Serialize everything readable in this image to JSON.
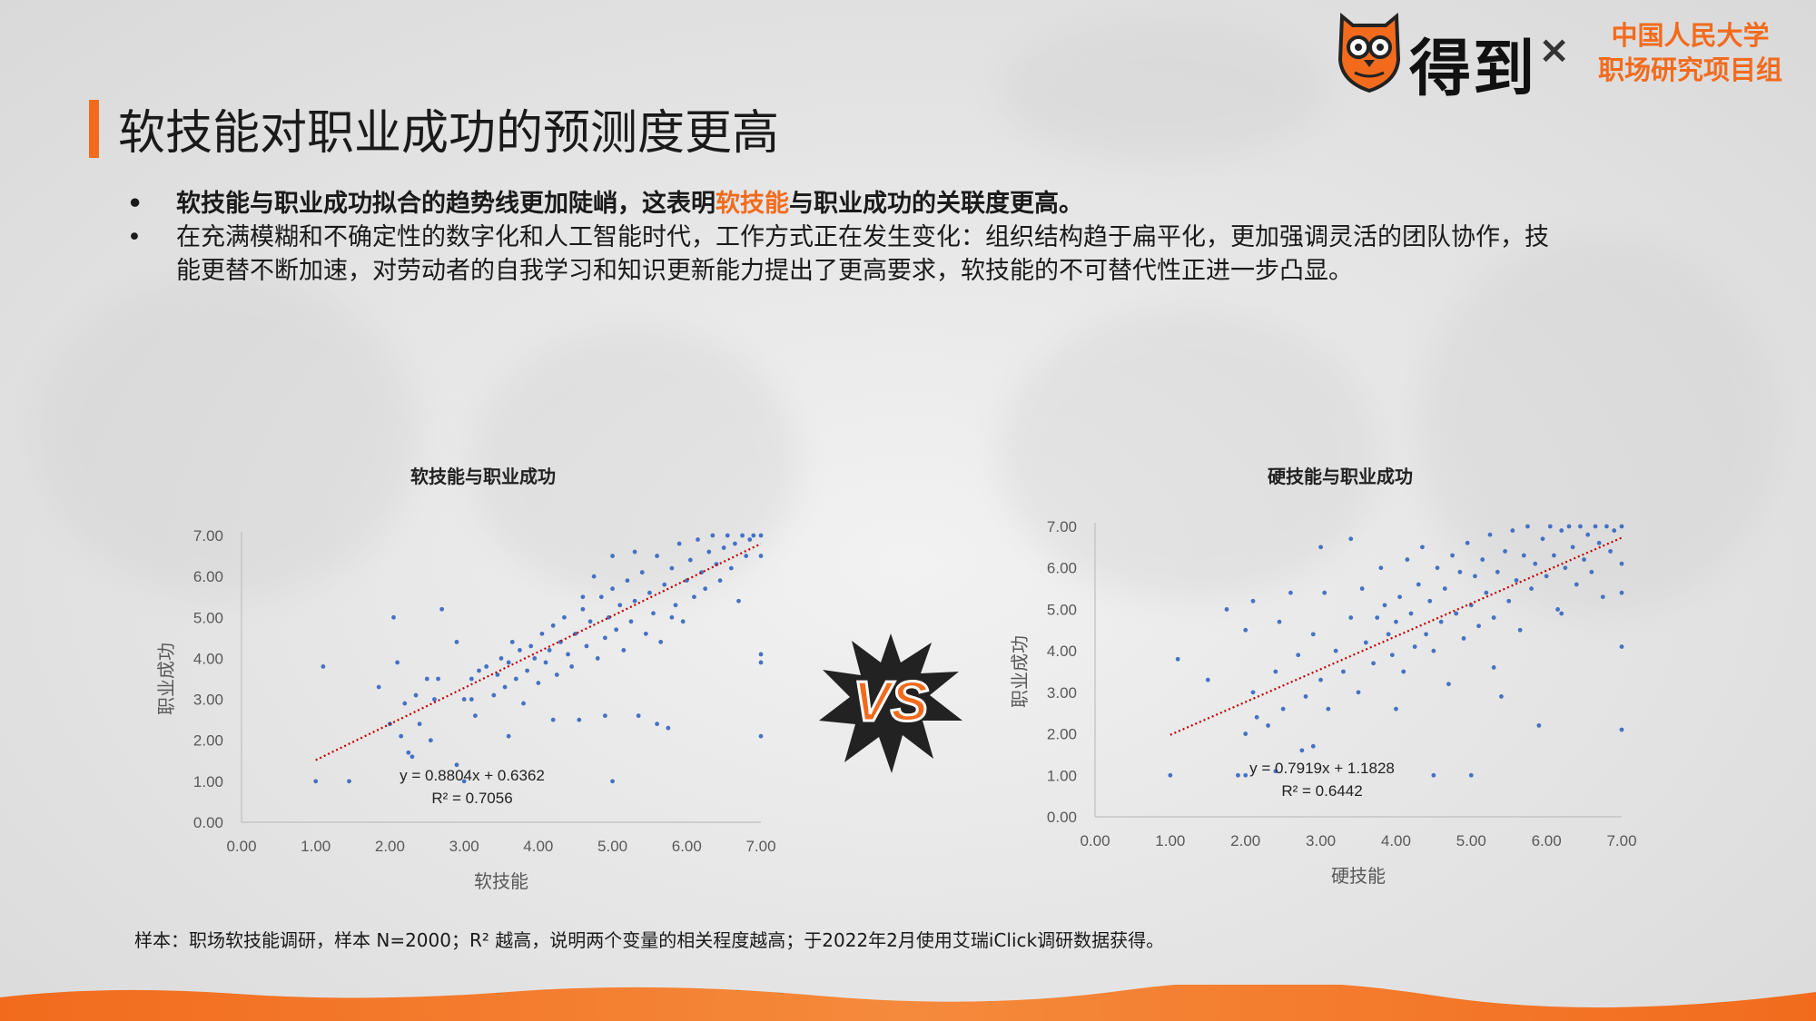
{
  "brand": {
    "name": "得到",
    "separator": "×",
    "partner_line1": "中国人民大学",
    "partner_line2": "职场研究项目组",
    "accent_color": "#f26b1d"
  },
  "page_title": "软技能对职业成功的预测度更高",
  "bullets": {
    "b1_prefix": "软技能与职业成功拟合的趋势线更加陡峭，这表明",
    "b1_highlight": "软技能",
    "b1_suffix": "与职业成功的关联度更高。",
    "b2_line1": "在充满模糊和不确定性的数字化和人工智能时代，工作方式正在发生变化：组织结构趋于扁平化，更加强调灵活的团队协作，技",
    "b2_line2": "能更替不断加速，对劳动者的自我学习和知识更新能力提出了更高要求，软技能的不可替代性正进一步凸显。",
    "marker": "•"
  },
  "vs_label": "VS",
  "footnote": "样本：职场软技能调研，样本 N=2000；R² 越高，说明两个变量的相关程度越高；于2022年2月使用艾瑞iClick调研数据获得。",
  "chart_data": [
    {
      "type": "scatter",
      "title": "软技能与职业成功",
      "xlabel": "软技能",
      "ylabel": "职业成功",
      "xlim": [
        0,
        7
      ],
      "ylim": [
        0,
        7
      ],
      "xticks": [
        "0.00",
        "1.00",
        "2.00",
        "3.00",
        "4.00",
        "5.00",
        "6.00",
        "7.00"
      ],
      "yticks": [
        "0.00",
        "1.00",
        "2.00",
        "3.00",
        "4.00",
        "5.00",
        "6.00",
        "7.00"
      ],
      "point_color": "#4472c4",
      "trendline": {
        "slope": 0.8804,
        "intercept": 0.6362,
        "color": "#c00000",
        "x_range": [
          1,
          7
        ]
      },
      "equation": "y = 0.8804x + 0.6362",
      "r2_label": "R² = 0.7056",
      "points": [
        [
          1.0,
          1.0
        ],
        [
          1.1,
          3.8
        ],
        [
          1.45,
          1.0
        ],
        [
          1.85,
          3.3
        ],
        [
          2.0,
          2.4
        ],
        [
          2.05,
          5.0
        ],
        [
          2.1,
          3.9
        ],
        [
          2.15,
          2.1
        ],
        [
          2.2,
          2.9
        ],
        [
          2.25,
          1.7
        ],
        [
          2.3,
          1.6
        ],
        [
          2.35,
          3.1
        ],
        [
          2.4,
          2.4
        ],
        [
          2.5,
          3.5
        ],
        [
          2.55,
          2.0
        ],
        [
          2.6,
          3.0
        ],
        [
          2.65,
          3.5
        ],
        [
          2.7,
          5.2
        ],
        [
          2.9,
          1.4
        ],
        [
          2.9,
          4.4
        ],
        [
          3.0,
          3.0
        ],
        [
          3.0,
          1.0
        ],
        [
          3.1,
          3.0
        ],
        [
          3.1,
          3.5
        ],
        [
          3.15,
          2.6
        ],
        [
          3.2,
          3.7
        ],
        [
          3.3,
          3.8
        ],
        [
          3.4,
          3.1
        ],
        [
          3.45,
          3.6
        ],
        [
          3.5,
          4.0
        ],
        [
          3.55,
          3.3
        ],
        [
          3.6,
          3.9
        ],
        [
          3.65,
          4.4
        ],
        [
          3.7,
          3.5
        ],
        [
          3.75,
          4.2
        ],
        [
          3.8,
          2.9
        ],
        [
          3.85,
          3.7
        ],
        [
          3.9,
          4.3
        ],
        [
          3.95,
          4.0
        ],
        [
          4.0,
          3.4
        ],
        [
          4.05,
          4.6
        ],
        [
          4.1,
          3.9
        ],
        [
          4.15,
          4.2
        ],
        [
          4.2,
          4.8
        ],
        [
          4.25,
          3.6
        ],
        [
          4.3,
          4.4
        ],
        [
          4.35,
          5.0
        ],
        [
          4.4,
          4.1
        ],
        [
          4.45,
          3.8
        ],
        [
          4.5,
          4.6
        ],
        [
          4.55,
          2.5
        ],
        [
          4.6,
          5.2
        ],
        [
          4.65,
          4.3
        ],
        [
          4.7,
          4.9
        ],
        [
          4.75,
          6.0
        ],
        [
          4.8,
          4.0
        ],
        [
          4.85,
          5.5
        ],
        [
          4.9,
          4.5
        ],
        [
          4.95,
          5.0
        ],
        [
          5.0,
          1.0
        ],
        [
          5.0,
          5.7
        ],
        [
          5.05,
          4.7
        ],
        [
          5.1,
          5.3
        ],
        [
          5.15,
          4.2
        ],
        [
          5.2,
          5.9
        ],
        [
          5.25,
          4.9
        ],
        [
          5.3,
          5.4
        ],
        [
          5.35,
          2.6
        ],
        [
          5.4,
          6.1
        ],
        [
          5.45,
          4.6
        ],
        [
          5.5,
          5.6
        ],
        [
          5.55,
          5.1
        ],
        [
          5.6,
          6.5
        ],
        [
          5.65,
          4.4
        ],
        [
          5.7,
          5.8
        ],
        [
          5.75,
          2.3
        ],
        [
          5.8,
          6.2
        ],
        [
          5.85,
          5.3
        ],
        [
          5.9,
          6.8
        ],
        [
          5.95,
          4.9
        ],
        [
          6.0,
          5.9
        ],
        [
          6.05,
          6.4
        ],
        [
          6.1,
          5.5
        ],
        [
          6.15,
          6.9
        ],
        [
          6.2,
          6.1
        ],
        [
          6.25,
          5.7
        ],
        [
          6.3,
          6.6
        ],
        [
          6.35,
          7.0
        ],
        [
          6.4,
          6.3
        ],
        [
          6.45,
          5.9
        ],
        [
          6.5,
          6.7
        ],
        [
          6.55,
          7.0
        ],
        [
          6.6,
          6.2
        ],
        [
          6.65,
          6.8
        ],
        [
          6.7,
          5.4
        ],
        [
          6.75,
          7.0
        ],
        [
          6.8,
          6.5
        ],
        [
          6.85,
          6.9
        ],
        [
          6.9,
          7.0
        ],
        [
          7.0,
          7.0
        ],
        [
          7.0,
          6.5
        ],
        [
          7.0,
          4.1
        ],
        [
          7.0,
          3.9
        ],
        [
          7.0,
          2.1
        ],
        [
          5.6,
          2.4
        ],
        [
          4.9,
          2.6
        ],
        [
          3.6,
          2.1
        ],
        [
          4.2,
          2.5
        ],
        [
          5.8,
          5.0
        ],
        [
          5.0,
          6.5
        ],
        [
          4.6,
          5.5
        ],
        [
          5.3,
          6.6
        ]
      ]
    },
    {
      "type": "scatter",
      "title": "硬技能与职业成功",
      "xlabel": "硬技能",
      "ylabel": "职业成功",
      "xlim": [
        0,
        7
      ],
      "ylim": [
        0,
        7
      ],
      "xticks": [
        "0.00",
        "1.00",
        "2.00",
        "3.00",
        "4.00",
        "5.00",
        "6.00",
        "7.00"
      ],
      "yticks": [
        "0.00",
        "1.00",
        "2.00",
        "3.00",
        "4.00",
        "5.00",
        "6.00",
        "7.00"
      ],
      "point_color": "#4472c4",
      "trendline": {
        "slope": 0.7919,
        "intercept": 1.1828,
        "color": "#c00000",
        "x_range": [
          1,
          7
        ]
      },
      "equation": "y = 0.7919x + 1.1828",
      "r2_label": "R² = 0.6442",
      "points": [
        [
          1.0,
          1.0
        ],
        [
          1.1,
          3.8
        ],
        [
          1.5,
          3.3
        ],
        [
          1.75,
          5.0
        ],
        [
          1.9,
          1.0
        ],
        [
          2.0,
          1.0
        ],
        [
          2.0,
          4.5
        ],
        [
          2.0,
          2.0
        ],
        [
          2.1,
          5.2
        ],
        [
          2.1,
          3.0
        ],
        [
          2.15,
          2.4
        ],
        [
          2.3,
          2.2
        ],
        [
          2.4,
          1.1
        ],
        [
          2.4,
          3.5
        ],
        [
          2.45,
          4.7
        ],
        [
          2.5,
          2.6
        ],
        [
          2.6,
          5.4
        ],
        [
          2.7,
          3.9
        ],
        [
          2.75,
          1.6
        ],
        [
          2.8,
          2.9
        ],
        [
          2.9,
          4.4
        ],
        [
          2.9,
          1.7
        ],
        [
          3.0,
          6.5
        ],
        [
          3.0,
          3.3
        ],
        [
          3.05,
          5.4
        ],
        [
          3.1,
          2.6
        ],
        [
          3.2,
          4.0
        ],
        [
          3.3,
          3.5
        ],
        [
          3.4,
          4.8
        ],
        [
          3.5,
          3.0
        ],
        [
          3.55,
          5.5
        ],
        [
          3.6,
          4.2
        ],
        [
          3.7,
          3.7
        ],
        [
          3.75,
          4.8
        ],
        [
          3.8,
          6.0
        ],
        [
          3.85,
          5.1
        ],
        [
          3.9,
          4.4
        ],
        [
          3.95,
          3.9
        ],
        [
          4.0,
          4.7
        ],
        [
          4.05,
          5.3
        ],
        [
          4.1,
          3.5
        ],
        [
          4.15,
          6.2
        ],
        [
          4.2,
          4.9
        ],
        [
          4.25,
          4.1
        ],
        [
          4.3,
          5.6
        ],
        [
          4.35,
          6.5
        ],
        [
          4.4,
          4.4
        ],
        [
          4.45,
          5.2
        ],
        [
          4.5,
          1.0
        ],
        [
          4.5,
          4.0
        ],
        [
          4.55,
          6.0
        ],
        [
          4.6,
          4.7
        ],
        [
          4.65,
          5.5
        ],
        [
          4.7,
          3.2
        ],
        [
          4.75,
          6.3
        ],
        [
          4.8,
          4.9
        ],
        [
          4.85,
          5.9
        ],
        [
          4.9,
          4.3
        ],
        [
          4.95,
          6.6
        ],
        [
          5.0,
          1.0
        ],
        [
          5.0,
          5.1
        ],
        [
          5.05,
          5.8
        ],
        [
          5.1,
          4.6
        ],
        [
          5.15,
          6.2
        ],
        [
          5.2,
          5.4
        ],
        [
          5.25,
          6.8
        ],
        [
          5.3,
          4.8
        ],
        [
          5.35,
          5.9
        ],
        [
          5.4,
          2.9
        ],
        [
          5.45,
          6.4
        ],
        [
          5.5,
          5.2
        ],
        [
          5.55,
          6.9
        ],
        [
          5.6,
          5.7
        ],
        [
          5.65,
          4.5
        ],
        [
          5.7,
          6.3
        ],
        [
          5.75,
          7.0
        ],
        [
          5.8,
          5.5
        ],
        [
          5.85,
          6.1
        ],
        [
          5.9,
          2.2
        ],
        [
          5.95,
          6.7
        ],
        [
          6.0,
          5.8
        ],
        [
          6.05,
          7.0
        ],
        [
          6.1,
          6.3
        ],
        [
          6.15,
          5.0
        ],
        [
          6.2,
          6.9
        ],
        [
          6.25,
          6.0
        ],
        [
          6.3,
          7.0
        ],
        [
          6.35,
          6.5
        ],
        [
          6.4,
          5.6
        ],
        [
          6.45,
          7.0
        ],
        [
          6.5,
          6.2
        ],
        [
          6.55,
          6.8
        ],
        [
          6.6,
          5.9
        ],
        [
          6.65,
          7.0
        ],
        [
          6.7,
          6.6
        ],
        [
          6.75,
          5.3
        ],
        [
          6.8,
          7.0
        ],
        [
          6.85,
          6.4
        ],
        [
          6.9,
          6.9
        ],
        [
          7.0,
          7.0
        ],
        [
          7.0,
          6.1
        ],
        [
          7.0,
          5.4
        ],
        [
          7.0,
          4.1
        ],
        [
          7.0,
          2.1
        ],
        [
          5.3,
          3.6
        ],
        [
          4.0,
          2.6
        ],
        [
          3.4,
          6.7
        ],
        [
          6.2,
          4.9
        ]
      ]
    }
  ]
}
